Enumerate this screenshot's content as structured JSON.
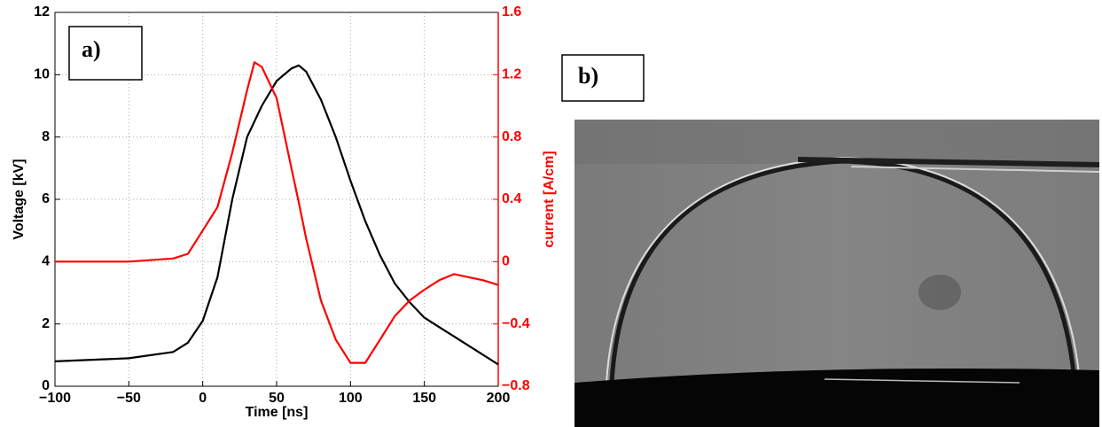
{
  "chart_data": {
    "type": "line",
    "xlabel": "Time [ns]",
    "ylabel": "Voltage [kV]",
    "y2label": "current [A/cm]",
    "annotations": [
      "a)",
      "b)"
    ],
    "x": [
      -100,
      -50,
      -20,
      -10,
      0,
      10,
      20,
      30,
      35,
      40,
      50,
      60,
      65,
      70,
      80,
      90,
      100,
      110,
      120,
      130,
      140,
      150,
      160,
      170,
      180,
      190,
      200
    ],
    "series": [
      {
        "color": "#000000",
        "values": [
          0.8,
          0.9,
          1.1,
          1.4,
          2.1,
          3.5,
          6.0,
          8.0,
          8.5,
          9.0,
          9.8,
          10.2,
          10.3,
          10.1,
          9.2,
          8.0,
          6.6,
          5.3,
          4.2,
          3.3,
          2.7,
          2.2,
          1.9,
          1.6,
          1.3,
          1.0,
          0.7
        ]
      },
      {
        "color": "#ff0000",
        "axis": "y2",
        "values": [
          0,
          0,
          0.02,
          0.05,
          0.2,
          0.35,
          0.7,
          1.1,
          1.28,
          1.25,
          1.05,
          0.6,
          0.38,
          0.15,
          -0.25,
          -0.5,
          -0.65,
          -0.65,
          -0.5,
          -0.35,
          -0.25,
          -0.18,
          -0.12,
          -0.08,
          -0.1,
          -0.12,
          -0.15
        ]
      }
    ],
    "xlim": [
      -100,
      200
    ],
    "xticks": [
      {
        "value": -100,
        "label": "−100"
      },
      {
        "value": -50,
        "label": "−50"
      },
      0,
      50,
      100,
      150,
      200
    ],
    "ylim": [
      0,
      12
    ],
    "yticks": [
      0,
      2,
      4,
      6,
      8,
      10,
      12
    ],
    "y2lim": [
      -0.8,
      1.6
    ],
    "y2ticks": [
      {
        "value": -0.8,
        "label": "−0.8"
      },
      {
        "value": -0.4,
        "label": "−0.4"
      },
      0,
      0.4,
      0.8,
      1.2,
      1.6
    ],
    "grid": true
  }
}
